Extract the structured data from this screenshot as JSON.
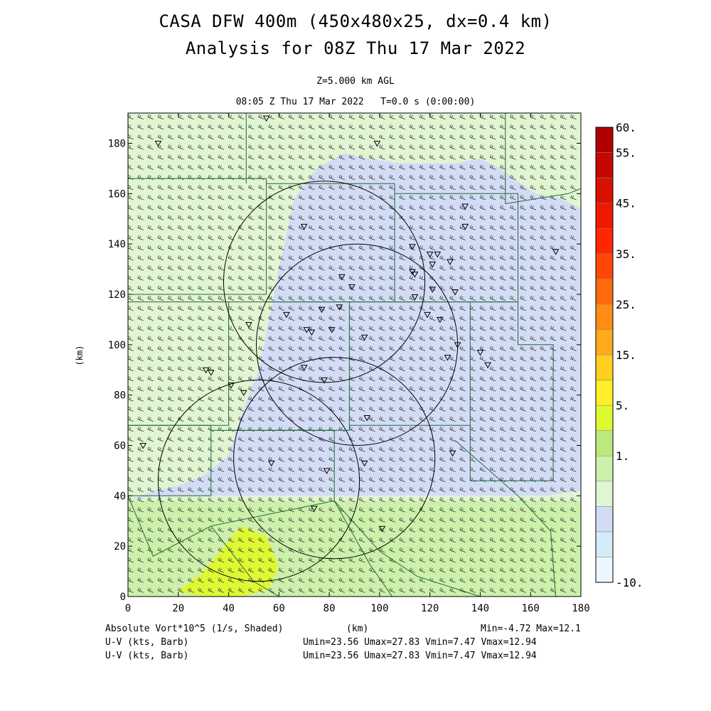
{
  "header": {
    "title_line1": "CASA DFW 400m (450x480x25, dx=0.4 km)",
    "title_line2": "Analysis for 08Z Thu 17 Mar 2022",
    "level_label": "Z=5.000 km AGL",
    "time_label": "08:05 Z Thu 17 Mar 2022   T=0.0 s (0:00:00)"
  },
  "footer": {
    "field_label": "Absolute Vort*10^5 (1/s, Shaded)",
    "xunit_label": "(km)",
    "minmax": "Min=-4.72 Max=12.1",
    "barb1_label": "U-V (kts, Barb)",
    "barb1_stats": "Umin=23.56 Umax=27.83 Vmin=7.47 Vmax=12.94",
    "barb2_label": "U-V (kts, Barb)",
    "barb2_stats": "Umin=23.56 Umax=27.83 Vmin=7.47 Vmax=12.94"
  },
  "chart_data": {
    "type": "heatmap",
    "title": "CASA DFW 400m (450x480x25, dx=0.4 km)",
    "xlabel": "(km)",
    "ylabel": "(km)",
    "xlim": [
      0,
      180
    ],
    "ylim": [
      0,
      192
    ],
    "x_ticks": [
      0,
      20,
      40,
      60,
      80,
      100,
      120,
      140,
      160,
      180
    ],
    "y_ticks": [
      0,
      20,
      40,
      60,
      80,
      100,
      120,
      140,
      160,
      180
    ],
    "field": "Absolute Vort*10^5 (1/s)",
    "min": -4.72,
    "max": 12.1,
    "colorbar": {
      "labels": [
        {
          "text": "60.",
          "value": 60
        },
        {
          "text": "55.",
          "value": 55
        },
        {
          "text": "45.",
          "value": 45
        },
        {
          "text": "35.",
          "value": 35
        },
        {
          "text": "25.",
          "value": 25
        },
        {
          "text": "15.",
          "value": 15
        },
        {
          "text": "5.",
          "value": 5
        },
        {
          "text": "1.",
          "value": 1
        },
        {
          "text": "-10.",
          "value": -10
        }
      ],
      "colors": [
        "#ebf7fc",
        "#d6ebfa",
        "#d3dcf5",
        "#e0f5d2",
        "#cdf0aa",
        "#bde87e",
        "#def834",
        "#ffee28",
        "#ffd020",
        "#ffaa1c",
        "#ff8c14",
        "#ff6a0c",
        "#ff4808",
        "#ff2600",
        "#ee1a00",
        "#d81000",
        "#c40800",
        "#b00000"
      ]
    },
    "vorticity_regions": [
      {
        "level": "1.",
        "color": "#d3dcf5",
        "x": [
          0,
          10,
          20,
          30,
          40,
          45,
          52,
          56,
          60,
          66,
          75,
          86,
          95,
          108,
          118,
          130,
          140,
          148,
          156,
          162,
          172,
          180,
          180,
          166,
          150,
          135,
          128,
          120,
          110,
          95,
          80,
          65,
          55,
          42,
          25,
          10,
          0
        ],
        "y": [
          38,
          42,
          44,
          48,
          56,
          72,
          90,
          110,
          130,
          158,
          170,
          176,
          174,
          172,
          172,
          172,
          174,
          170,
          164,
          160,
          158,
          154,
          42,
          40,
          40,
          40,
          40,
          40,
          40,
          40,
          40,
          40,
          40,
          40,
          40,
          40,
          38
        ]
      },
      {
        "level": "5.",
        "color": "#cdf0aa",
        "x": [
          0,
          180,
          180,
          0
        ],
        "y": [
          0,
          0,
          38,
          38
        ]
      },
      {
        "level": "15.",
        "color": "#def834",
        "x": [
          20,
          30,
          45,
          55,
          60,
          56,
          45,
          30,
          20
        ],
        "y": [
          2,
          10,
          28,
          24,
          12,
          3,
          0,
          0,
          2
        ]
      }
    ],
    "wind_barbs": {
      "u_range_kts": [
        23.56,
        27.83
      ],
      "v_range_kts": [
        7.47,
        12.94
      ],
      "row_spacing_km": 4,
      "col_spacing_km": 4
    },
    "radar_rings": [
      {
        "cx": 78,
        "cy": 125,
        "r": 40
      },
      {
        "cx": 52,
        "cy": 46,
        "r": 40
      },
      {
        "cx": 82,
        "cy": 55,
        "r": 40
      },
      {
        "cx": 91,
        "cy": 100,
        "r": 40
      }
    ],
    "county_lines": [
      [
        [
          0,
          166
        ],
        [
          55,
          166
        ],
        [
          55,
          120
        ],
        [
          0,
          120
        ]
      ],
      [
        [
          0,
          117
        ],
        [
          40,
          117
        ],
        [
          40,
          68
        ],
        [
          0,
          68
        ]
      ],
      [
        [
          0,
          68
        ],
        [
          33,
          68
        ],
        [
          33,
          40
        ],
        [
          0,
          40
        ]
      ],
      [
        [
          55,
          164
        ],
        [
          106,
          164
        ],
        [
          106,
          117
        ],
        [
          55,
          117
        ]
      ],
      [
        [
          106,
          160
        ],
        [
          155,
          160
        ],
        [
          155,
          117
        ],
        [
          106,
          117
        ]
      ],
      [
        [
          40,
          117
        ],
        [
          88,
          117
        ],
        [
          88,
          66
        ],
        [
          40,
          66
        ]
      ],
      [
        [
          88,
          117
        ],
        [
          136,
          117
        ],
        [
          136,
          68
        ],
        [
          88,
          68
        ]
      ],
      [
        [
          136,
          117
        ],
        [
          155,
          117
        ],
        [
          155,
          100
        ],
        [
          169,
          100
        ],
        [
          169,
          46
        ],
        [
          136,
          46
        ],
        [
          136,
          68
        ]
      ],
      [
        [
          33,
          66
        ],
        [
          82,
          66
        ],
        [
          82,
          38
        ]
      ],
      [
        [
          47,
          192
        ],
        [
          47,
          164
        ]
      ],
      [
        [
          150,
          192
        ],
        [
          150,
          156
        ],
        [
          175,
          160
        ],
        [
          180,
          162
        ]
      ],
      [
        [
          0,
          40
        ],
        [
          10,
          16
        ],
        [
          33,
          28
        ],
        [
          82,
          38
        ],
        [
          100,
          18
        ],
        [
          115,
          8
        ],
        [
          140,
          0
        ]
      ],
      [
        [
          33,
          28
        ],
        [
          50,
          6
        ],
        [
          60,
          0
        ]
      ],
      [
        [
          82,
          38
        ],
        [
          96,
          13
        ],
        [
          105,
          0
        ]
      ],
      [
        [
          130,
          62
        ],
        [
          155,
          40
        ],
        [
          168,
          26
        ],
        [
          170,
          0
        ]
      ]
    ],
    "stations": [
      [
        55,
        190
      ],
      [
        12,
        180
      ],
      [
        99,
        180
      ],
      [
        134,
        155
      ],
      [
        134,
        147
      ],
      [
        70,
        147
      ],
      [
        113,
        139
      ],
      [
        170,
        137
      ],
      [
        120,
        136
      ],
      [
        123,
        136
      ],
      [
        121,
        132
      ],
      [
        128,
        133
      ],
      [
        113,
        129
      ],
      [
        114,
        128
      ],
      [
        85,
        127
      ],
      [
        89,
        123
      ],
      [
        121,
        122
      ],
      [
        130,
        121
      ],
      [
        114,
        119
      ],
      [
        84,
        115
      ],
      [
        77,
        114
      ],
      [
        63,
        112
      ],
      [
        119,
        112
      ],
      [
        124,
        110
      ],
      [
        48,
        108
      ],
      [
        71,
        106
      ],
      [
        73,
        105
      ],
      [
        81,
        106
      ],
      [
        94,
        103
      ],
      [
        131,
        100
      ],
      [
        140,
        97
      ],
      [
        127,
        95
      ],
      [
        143,
        92
      ],
      [
        70,
        91
      ],
      [
        31,
        90
      ],
      [
        33,
        89
      ],
      [
        78,
        86
      ],
      [
        41,
        84
      ],
      [
        46,
        81
      ],
      [
        95,
        71
      ],
      [
        6,
        60
      ],
      [
        129,
        57
      ],
      [
        57,
        53
      ],
      [
        94,
        53
      ],
      [
        79,
        50
      ],
      [
        74,
        35
      ],
      [
        101,
        27
      ]
    ]
  }
}
